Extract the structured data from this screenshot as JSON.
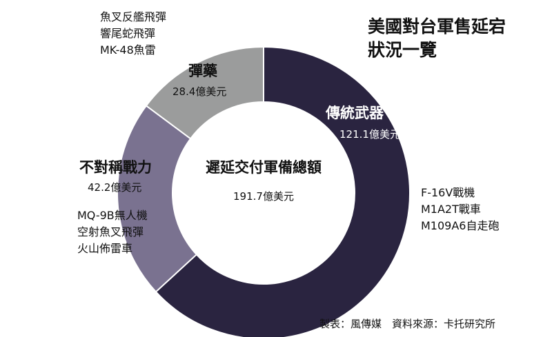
{
  "title_lines": [
    "美國對台軍售延宕",
    "狀況一覽"
  ],
  "source": "製表：風傳媒　資料來源：卡托研究所",
  "chart_data": {
    "type": "pie",
    "donut": true,
    "center": {
      "label": "遲延交付軍備總額",
      "value": "191.7億美元"
    },
    "total": 191.7,
    "unit": "億美元",
    "slices": [
      {
        "name": "傳統武器",
        "value": 121.1,
        "value_label": "121.1億美元",
        "color": "#2a2440",
        "items": [
          "F-16V戰機",
          "M1A2T戰車",
          "M109A6自走砲"
        ]
      },
      {
        "name": "不對稱戰力",
        "value": 42.2,
        "value_label": "42.2億美元",
        "color": "#7a7290",
        "items": [
          "MQ-9B無人機",
          "空射魚叉飛彈",
          "火山佈雷車"
        ]
      },
      {
        "name": "彈藥",
        "value": 28.4,
        "value_label": "28.4億美元",
        "color": "#9b9c9c",
        "items": [
          "魚叉反艦飛彈",
          "響尾蛇飛彈",
          "MK-48魚雷"
        ]
      }
    ]
  }
}
